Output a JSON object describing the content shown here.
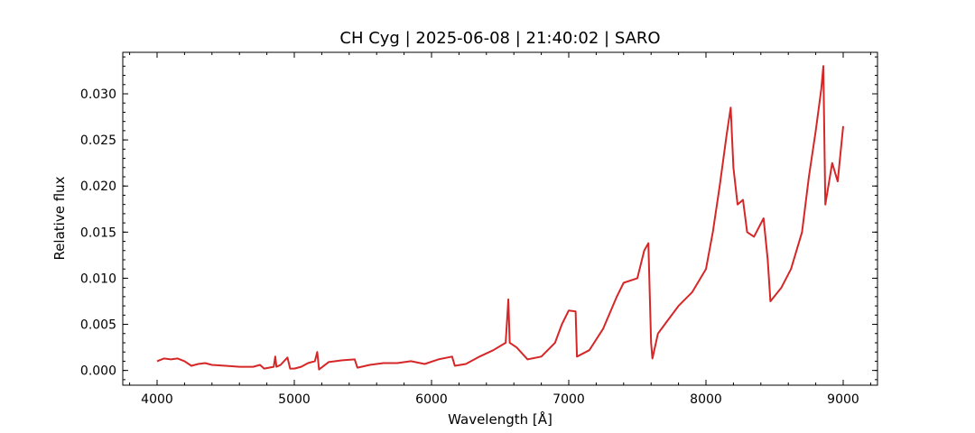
{
  "chart_data": {
    "type": "line",
    "title": "CH Cyg | 2025-06-08 | 21:40:02 | SARO",
    "xlabel": "Wavelength [Å]",
    "ylabel": "Relative flux",
    "xlim": [
      3750,
      9250
    ],
    "ylim": [
      -0.0016,
      0.0345
    ],
    "x_ticks": [
      4000,
      5000,
      6000,
      7000,
      8000,
      9000
    ],
    "x_tick_labels": [
      "4000",
      "5000",
      "6000",
      "7000",
      "8000",
      "9000"
    ],
    "y_ticks": [
      0.0,
      0.005,
      0.01,
      0.015,
      0.02,
      0.025,
      0.03
    ],
    "y_tick_labels": [
      "0.000",
      "0.005",
      "0.010",
      "0.015",
      "0.020",
      "0.025",
      "0.030"
    ],
    "x_minor_step": 200,
    "y_minor_step": 0.001,
    "grid": false,
    "legend": "none",
    "series": [
      {
        "color": "#d62728",
        "points": [
          [
            4000,
            0.001
          ],
          [
            4050,
            0.0013
          ],
          [
            4100,
            0.0012
          ],
          [
            4150,
            0.0013
          ],
          [
            4200,
            0.001
          ],
          [
            4250,
            0.0005
          ],
          [
            4300,
            0.0007
          ],
          [
            4350,
            0.0008
          ],
          [
            4400,
            0.0006
          ],
          [
            4500,
            0.0005
          ],
          [
            4600,
            0.0004
          ],
          [
            4700,
            0.0004
          ],
          [
            4750,
            0.0006
          ],
          [
            4780,
            0.0002
          ],
          [
            4850,
            0.0004
          ],
          [
            4861,
            0.0015
          ],
          [
            4870,
            0.0004
          ],
          [
            4900,
            0.0006
          ],
          [
            4950,
            0.0014
          ],
          [
            4970,
            0.0002
          ],
          [
            5000,
            0.0002
          ],
          [
            5050,
            0.0004
          ],
          [
            5100,
            0.0008
          ],
          [
            5150,
            0.001
          ],
          [
            5167,
            0.002
          ],
          [
            5180,
            0.0001
          ],
          [
            5250,
            0.0009
          ],
          [
            5350,
            0.0011
          ],
          [
            5440,
            0.0012
          ],
          [
            5460,
            0.0003
          ],
          [
            5550,
            0.0006
          ],
          [
            5650,
            0.0008
          ],
          [
            5750,
            0.0008
          ],
          [
            5850,
            0.001
          ],
          [
            5950,
            0.0007
          ],
          [
            6050,
            0.0012
          ],
          [
            6150,
            0.0015
          ],
          [
            6170,
            0.0005
          ],
          [
            6250,
            0.0007
          ],
          [
            6350,
            0.0015
          ],
          [
            6450,
            0.0022
          ],
          [
            6540,
            0.003
          ],
          [
            6560,
            0.0077
          ],
          [
            6570,
            0.003
          ],
          [
            6620,
            0.0025
          ],
          [
            6700,
            0.0012
          ],
          [
            6800,
            0.0015
          ],
          [
            6900,
            0.003
          ],
          [
            6950,
            0.005
          ],
          [
            7000,
            0.0065
          ],
          [
            7050,
            0.0064
          ],
          [
            7060,
            0.0015
          ],
          [
            7150,
            0.0022
          ],
          [
            7250,
            0.0045
          ],
          [
            7350,
            0.008
          ],
          [
            7400,
            0.0095
          ],
          [
            7500,
            0.01
          ],
          [
            7550,
            0.013
          ],
          [
            7580,
            0.0138
          ],
          [
            7600,
            0.003
          ],
          [
            7610,
            0.0013
          ],
          [
            7650,
            0.004
          ],
          [
            7700,
            0.005
          ],
          [
            7800,
            0.007
          ],
          [
            7900,
            0.0085
          ],
          [
            8000,
            0.011
          ],
          [
            8050,
            0.015
          ],
          [
            8100,
            0.02
          ],
          [
            8150,
            0.0255
          ],
          [
            8180,
            0.0285
          ],
          [
            8200,
            0.022
          ],
          [
            8230,
            0.018
          ],
          [
            8270,
            0.0185
          ],
          [
            8300,
            0.015
          ],
          [
            8350,
            0.0145
          ],
          [
            8420,
            0.0165
          ],
          [
            8450,
            0.012
          ],
          [
            8470,
            0.0075
          ],
          [
            8550,
            0.009
          ],
          [
            8620,
            0.011
          ],
          [
            8700,
            0.015
          ],
          [
            8750,
            0.021
          ],
          [
            8800,
            0.026
          ],
          [
            8840,
            0.0305
          ],
          [
            8855,
            0.033
          ],
          [
            8870,
            0.018
          ],
          [
            8920,
            0.0225
          ],
          [
            8960,
            0.0205
          ],
          [
            9000,
            0.0265
          ]
        ]
      }
    ]
  }
}
